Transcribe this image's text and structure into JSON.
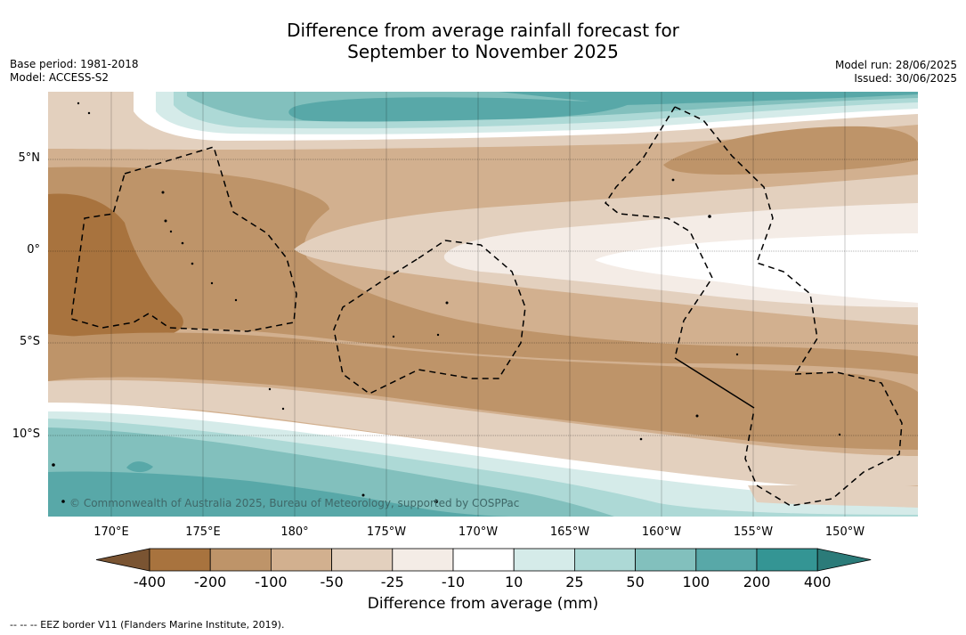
{
  "title_line1": "Difference from average rainfall forecast for",
  "title_line2": "September to November 2025",
  "meta_left": [
    "Base period: 1981-2018",
    "Model: ACCESS-S2"
  ],
  "meta_right": [
    "Model run: 28/06/2025",
    "Issued: 30/06/2025"
  ],
  "lat_labels": [
    "5°N",
    "0°",
    "5°S",
    "10°S"
  ],
  "lon_labels": [
    "170°E",
    "175°E",
    "180°",
    "175°W",
    "170°W",
    "165°W",
    "160°W",
    "155°W",
    "150°W"
  ],
  "colorbar": {
    "ticks": [
      "-400",
      "-200",
      "-100",
      "-50",
      "-25",
      "-10",
      "10",
      "25",
      "50",
      "100",
      "200",
      "400"
    ],
    "colors": [
      "#7a5432",
      "#a8733e",
      "#be9469",
      "#d2b08f",
      "#e3d0be",
      "#f4ece6",
      "#ffffff",
      "#d5ebe9",
      "#add9d6",
      "#82c0bd",
      "#58a8a8",
      "#349594",
      "#2b7b79"
    ],
    "label": "Difference from average (mm)"
  },
  "copyright": "© Commonwealth of Australia 2025, Bureau of Meteorology, supported by COSPPac",
  "footnote": "--  --  -- EEZ border V11 (Flanders Marine Institute, 2019)."
}
